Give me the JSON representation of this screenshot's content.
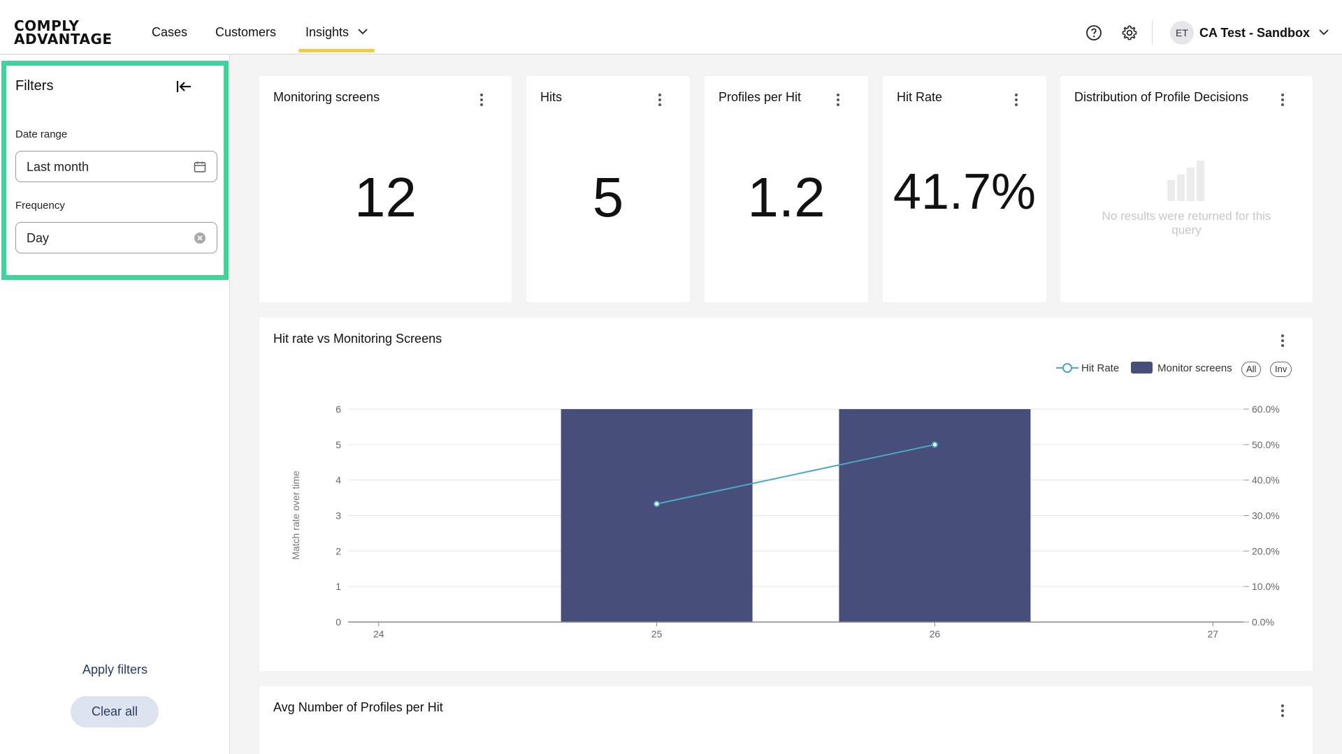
{
  "header": {
    "logo_line1": "COMPLY",
    "logo_line2": "ADVANTAGE",
    "nav": [
      "Cases",
      "Customers",
      "Insights"
    ],
    "avatar_initials": "ET",
    "account_name": "CA Test - Sandbox",
    "icons": [
      "help-icon",
      "settings-icon",
      "chevron-down-icon"
    ]
  },
  "sidebar": {
    "title": "Filters",
    "date_range_label": "Date range",
    "date_range_value": "Last month",
    "frequency_label": "Frequency",
    "frequency_value": "Day",
    "apply_label": "Apply filters",
    "clear_label": "Clear all",
    "highlight_color": "#3dd39a"
  },
  "cards": {
    "monitoring": {
      "title": "Monitoring screens",
      "value": "12"
    },
    "hits": {
      "title": "Hits",
      "value": "5"
    },
    "profiles_per_hit": {
      "title": "Profiles per Hit",
      "value": "1.2"
    },
    "hit_rate": {
      "title": "Hit Rate",
      "value": "41.7%"
    },
    "distribution": {
      "title": "Distribution of Profile Decisions",
      "empty_message": "No results were returned for this query"
    }
  },
  "hit_chart": {
    "title": "Hit rate vs Monitoring Screens",
    "legend_line": "Hit Rate",
    "legend_bar": "Monitor screens",
    "btn_all": "All",
    "btn_inv": "Inv"
  },
  "avg_chart": {
    "title": "Avg Number of Profiles per Hit"
  },
  "chart_data": {
    "type": "bar",
    "title": "Hit rate vs Monitoring Screens",
    "x": [
      "24",
      "25",
      "26",
      "27"
    ],
    "series": [
      {
        "name": "Monitor screens",
        "type": "bar",
        "x": [
          "25",
          "26"
        ],
        "values": [
          6,
          6
        ],
        "color": "#474e79"
      },
      {
        "name": "Hit Rate",
        "type": "line",
        "x": [
          "25",
          "26"
        ],
        "values": [
          33.3,
          50.0
        ],
        "color": "#4aa8c6"
      }
    ],
    "ylabel": "Match rate over time",
    "ylim_left": [
      0,
      6
    ],
    "ylim_right": [
      0,
      60
    ],
    "y_ticks_left": [
      "0",
      "1",
      "2",
      "3",
      "4",
      "5",
      "6"
    ],
    "y_ticks_right": [
      "0.0%",
      "10.0%",
      "20.0%",
      "30.0%",
      "40.0%",
      "50.0%",
      "60.0%"
    ],
    "grid": true,
    "legend_position": "top-right"
  }
}
